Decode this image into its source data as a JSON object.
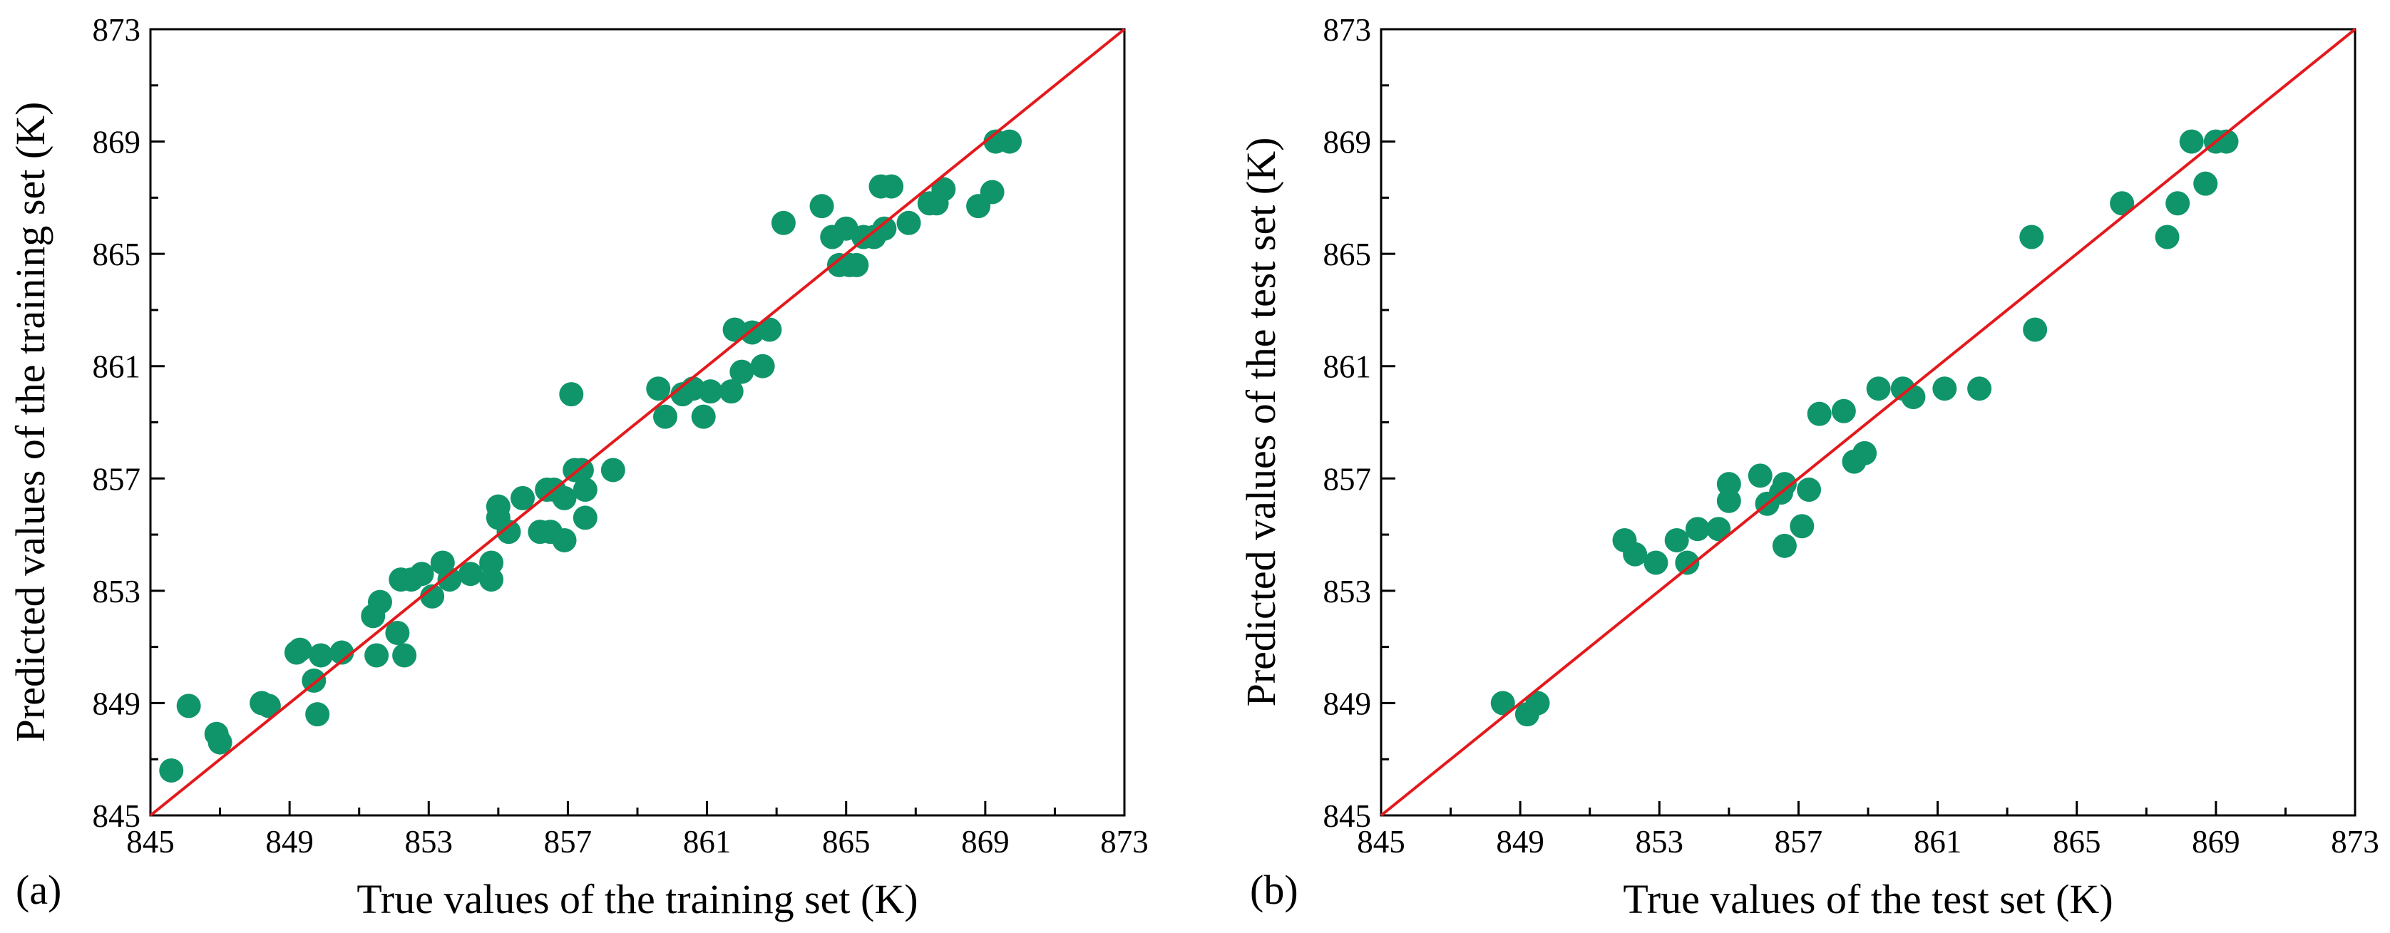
{
  "colors": {
    "point": "#10956b",
    "diagonal": "#e4191c",
    "axis": "#000000"
  },
  "chart_data": [
    {
      "type": "scatter",
      "panel_label": "(a)",
      "title": "",
      "xlabel": "True values of the training set (K)",
      "ylabel": "Predicted values of the training set (K)",
      "xlim": [
        845,
        873
      ],
      "ylim": [
        845,
        873
      ],
      "ticks": [
        "845",
        "849",
        "853",
        "857",
        "861",
        "865",
        "869",
        "873"
      ],
      "reference_line": "y = x",
      "points": [
        [
          845.6,
          846.6
        ],
        [
          846.1,
          848.9
        ],
        [
          846.9,
          847.9
        ],
        [
          847.0,
          847.6
        ],
        [
          848.2,
          849.0
        ],
        [
          848.4,
          848.9
        ],
        [
          849.2,
          850.8
        ],
        [
          849.3,
          850.9
        ],
        [
          849.7,
          849.8
        ],
        [
          849.8,
          848.6
        ],
        [
          849.9,
          850.7
        ],
        [
          850.5,
          850.8
        ],
        [
          851.4,
          852.1
        ],
        [
          851.5,
          850.7
        ],
        [
          851.6,
          852.6
        ],
        [
          852.1,
          851.5
        ],
        [
          852.2,
          853.4
        ],
        [
          852.3,
          850.7
        ],
        [
          852.5,
          853.4
        ],
        [
          852.8,
          853.6
        ],
        [
          853.1,
          852.8
        ],
        [
          853.4,
          854.0
        ],
        [
          853.6,
          853.4
        ],
        [
          854.2,
          853.6
        ],
        [
          854.8,
          853.4
        ],
        [
          854.8,
          854.0
        ],
        [
          855.0,
          855.6
        ],
        [
          855.0,
          856.0
        ],
        [
          855.3,
          855.1
        ],
        [
          855.7,
          856.3
        ],
        [
          856.2,
          855.1
        ],
        [
          856.4,
          856.6
        ],
        [
          856.5,
          855.1
        ],
        [
          856.6,
          856.6
        ],
        [
          856.9,
          856.3
        ],
        [
          856.9,
          854.8
        ],
        [
          857.1,
          860.0
        ],
        [
          857.2,
          857.3
        ],
        [
          857.4,
          857.3
        ],
        [
          857.5,
          855.6
        ],
        [
          857.5,
          856.6
        ],
        [
          858.3,
          857.3
        ],
        [
          859.6,
          860.2
        ],
        [
          859.8,
          859.2
        ],
        [
          860.3,
          860.0
        ],
        [
          860.6,
          860.2
        ],
        [
          860.9,
          859.2
        ],
        [
          861.1,
          860.1
        ],
        [
          861.7,
          860.1
        ],
        [
          861.8,
          862.3
        ],
        [
          862.0,
          860.8
        ],
        [
          862.3,
          862.2
        ],
        [
          862.6,
          861.0
        ],
        [
          862.8,
          862.3
        ],
        [
          863.2,
          866.1
        ],
        [
          864.3,
          866.7
        ],
        [
          864.6,
          865.6
        ],
        [
          864.8,
          864.6
        ],
        [
          865.0,
          865.9
        ],
        [
          865.1,
          864.6
        ],
        [
          865.3,
          864.6
        ],
        [
          865.5,
          865.6
        ],
        [
          865.8,
          865.6
        ],
        [
          866.0,
          867.4
        ],
        [
          866.1,
          865.9
        ],
        [
          866.3,
          867.4
        ],
        [
          866.8,
          866.1
        ],
        [
          867.4,
          866.8
        ],
        [
          867.6,
          866.8
        ],
        [
          867.8,
          867.3
        ],
        [
          868.8,
          866.7
        ],
        [
          869.2,
          867.2
        ],
        [
          869.3,
          869.0
        ],
        [
          869.7,
          869.0
        ]
      ]
    },
    {
      "type": "scatter",
      "panel_label": "(b)",
      "title": "",
      "xlabel": "True values of the test set (K)",
      "ylabel": "Predicted values of the test set (K)",
      "xlim": [
        845,
        873
      ],
      "ylim": [
        845,
        873
      ],
      "ticks": [
        "845",
        "849",
        "853",
        "857",
        "861",
        "865",
        "869",
        "873"
      ],
      "reference_line": "y = x",
      "points": [
        [
          848.5,
          849.0
        ],
        [
          849.2,
          848.6
        ],
        [
          849.5,
          849.0
        ],
        [
          852.0,
          854.8
        ],
        [
          852.3,
          854.3
        ],
        [
          852.9,
          854.0
        ],
        [
          853.5,
          854.8
        ],
        [
          853.8,
          854.0
        ],
        [
          854.1,
          855.2
        ],
        [
          854.7,
          855.2
        ],
        [
          855.0,
          856.2
        ],
        [
          855.0,
          856.8
        ],
        [
          855.9,
          857.1
        ],
        [
          856.1,
          856.1
        ],
        [
          856.5,
          856.5
        ],
        [
          856.6,
          856.8
        ],
        [
          856.6,
          854.6
        ],
        [
          857.1,
          855.3
        ],
        [
          857.3,
          856.6
        ],
        [
          857.6,
          859.3
        ],
        [
          858.3,
          859.4
        ],
        [
          858.6,
          857.6
        ],
        [
          858.9,
          857.9
        ],
        [
          859.3,
          860.2
        ],
        [
          860.0,
          860.2
        ],
        [
          860.3,
          859.9
        ],
        [
          861.2,
          860.2
        ],
        [
          862.2,
          860.2
        ],
        [
          863.7,
          865.6
        ],
        [
          863.8,
          862.3
        ],
        [
          866.3,
          866.8
        ],
        [
          867.6,
          865.6
        ],
        [
          867.9,
          866.8
        ],
        [
          868.3,
          869.0
        ],
        [
          868.7,
          867.5
        ],
        [
          869.0,
          869.0
        ],
        [
          869.3,
          869.0
        ]
      ]
    }
  ]
}
